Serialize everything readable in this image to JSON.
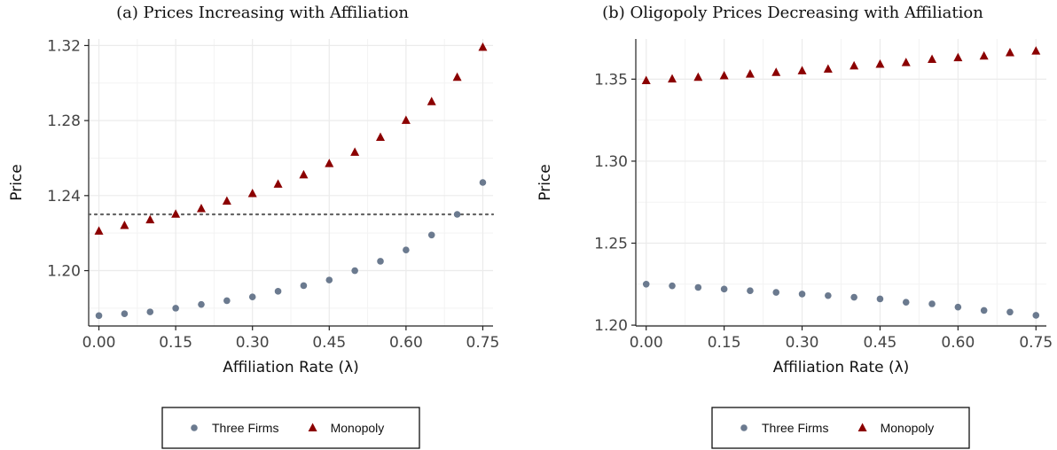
{
  "colors": {
    "three_firms": "#6b7a8f",
    "monopoly": "#8b0000",
    "grid": "#ebebeb",
    "reference": "#666666"
  },
  "chart_data": [
    {
      "type": "scatter",
      "title": "(a) Prices Increasing with Affiliation",
      "xlabel": "Affiliation Rate  (λ)",
      "ylabel": "Price",
      "xlim": [
        -0.02,
        0.77
      ],
      "ylim": [
        1.1705,
        1.3235
      ],
      "xticks": [
        "0.00",
        "0.15",
        "0.30",
        "0.45",
        "0.60",
        "0.75"
      ],
      "yticks": [
        "1.20",
        "1.24",
        "1.28",
        "1.32"
      ],
      "x": [
        0.0,
        0.05,
        0.1,
        0.15,
        0.2,
        0.25,
        0.3,
        0.35,
        0.4,
        0.45,
        0.5,
        0.55,
        0.6,
        0.65,
        0.7,
        0.75
      ],
      "series": [
        {
          "name": "Three Firms",
          "marker": "circle",
          "values": [
            1.176,
            1.177,
            1.178,
            1.18,
            1.182,
            1.184,
            1.186,
            1.189,
            1.192,
            1.195,
            1.2,
            1.205,
            1.211,
            1.219,
            1.23,
            1.247
          ]
        },
        {
          "name": "Monopoly",
          "marker": "triangle",
          "values": [
            1.221,
            1.224,
            1.227,
            1.23,
            1.233,
            1.237,
            1.241,
            1.246,
            1.251,
            1.257,
            1.263,
            1.271,
            1.28,
            1.29,
            1.303,
            1.319
          ]
        }
      ],
      "reference_line_y": 1.23,
      "grid": true,
      "legend": "bottom"
    },
    {
      "type": "scatter",
      "title": "(b) Oligopoly Prices Decreasing with Affiliation",
      "xlabel": "Affiliation Rate  (λ)",
      "ylabel": "Price",
      "xlim": [
        -0.02,
        0.77
      ],
      "ylim": [
        1.1995,
        1.3745
      ],
      "xticks": [
        "0.00",
        "0.15",
        "0.30",
        "0.45",
        "0.60",
        "0.75"
      ],
      "yticks": [
        "1.20",
        "1.25",
        "1.30",
        "1.35"
      ],
      "x": [
        0.0,
        0.05,
        0.1,
        0.15,
        0.2,
        0.25,
        0.3,
        0.35,
        0.4,
        0.45,
        0.5,
        0.55,
        0.6,
        0.65,
        0.7,
        0.75
      ],
      "series": [
        {
          "name": "Three Firms",
          "marker": "circle",
          "values": [
            1.225,
            1.224,
            1.223,
            1.222,
            1.221,
            1.22,
            1.219,
            1.218,
            1.217,
            1.216,
            1.214,
            1.213,
            1.211,
            1.209,
            1.208,
            1.206
          ]
        },
        {
          "name": "Monopoly",
          "marker": "triangle",
          "values": [
            1.349,
            1.35,
            1.351,
            1.352,
            1.353,
            1.354,
            1.355,
            1.356,
            1.358,
            1.359,
            1.36,
            1.362,
            1.363,
            1.364,
            1.366,
            1.367
          ]
        }
      ],
      "grid": true,
      "legend": "bottom"
    }
  ]
}
